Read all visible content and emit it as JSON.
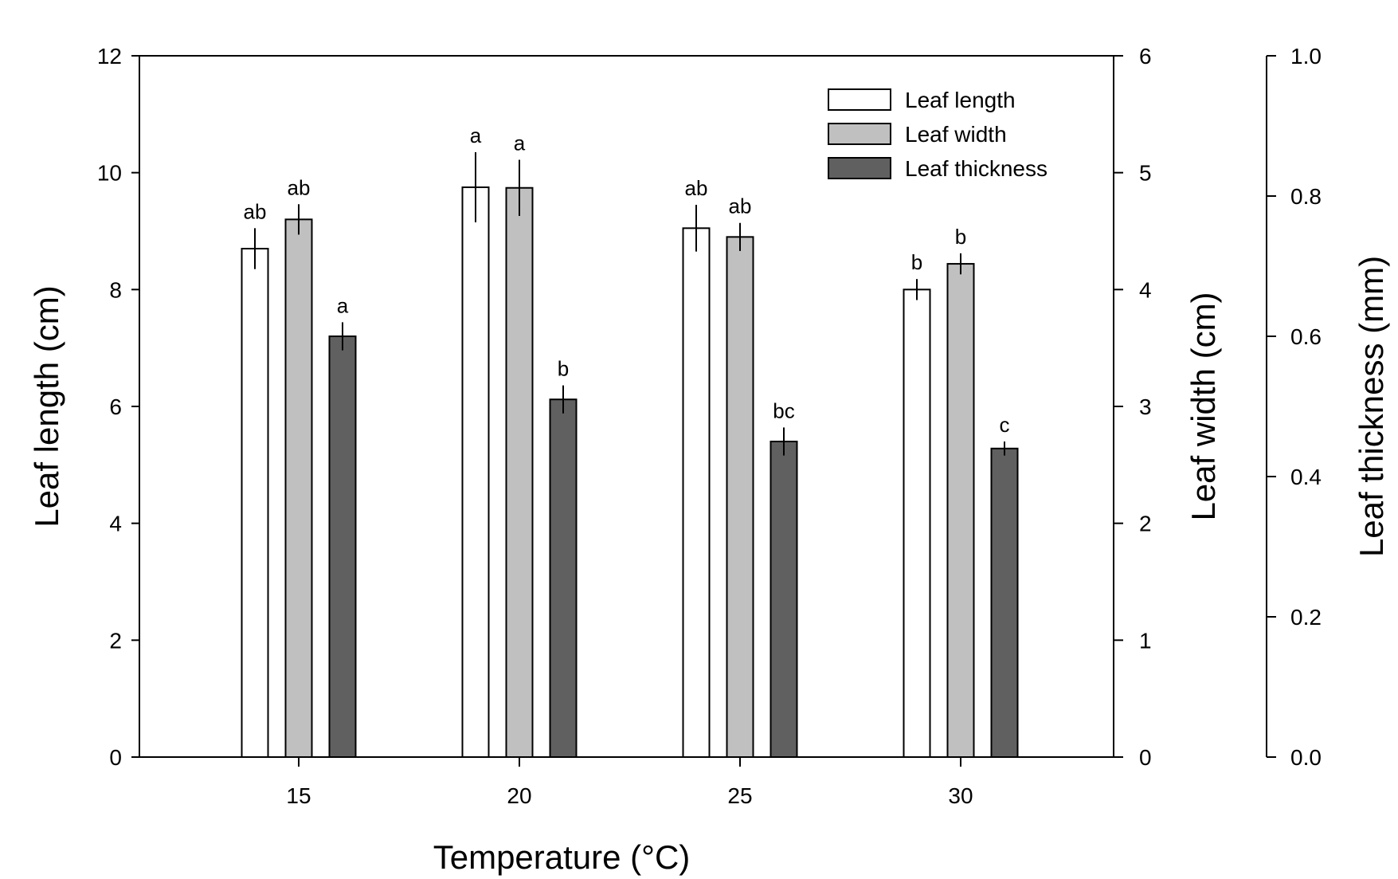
{
  "chart_data": {
    "type": "bar",
    "xlabel": "Temperature (°C)",
    "categories": [
      "15",
      "20",
      "25",
      "30"
    ],
    "axes": {
      "left": {
        "label": "Leaf length (cm)",
        "range": [
          0,
          12
        ],
        "ticks": [
          "0",
          "2",
          "4",
          "6",
          "8",
          "10",
          "12"
        ]
      },
      "right": {
        "label": "Leaf width (cm)",
        "range": [
          0,
          6
        ],
        "ticks": [
          "0",
          "1",
          "2",
          "3",
          "4",
          "5",
          "6"
        ]
      },
      "far_right": {
        "label": "Leaf thickness (mm)",
        "range": [
          0,
          1
        ],
        "ticks": [
          "0.0",
          "0.2",
          "0.4",
          "0.6",
          "0.8",
          "1.0"
        ]
      }
    },
    "legend_position": "top-right",
    "series": [
      {
        "name": "Leaf length",
        "axis": "left",
        "color": "#ffffff",
        "values": [
          8.7,
          9.75,
          9.05,
          8.0
        ],
        "errors": [
          0.35,
          0.6,
          0.4,
          0.18
        ],
        "letters": [
          "ab",
          "a",
          "ab",
          "b"
        ]
      },
      {
        "name": "Leaf width",
        "axis": "right",
        "color": "#c0c0c0",
        "values": [
          4.6,
          4.87,
          4.45,
          4.22
        ],
        "errors": [
          0.13,
          0.24,
          0.12,
          0.09
        ],
        "letters": [
          "ab",
          "a",
          "ab",
          "b"
        ]
      },
      {
        "name": "Leaf thickness",
        "axis": "far_right",
        "color": "#606060",
        "values": [
          0.6,
          0.51,
          0.45,
          0.44
        ],
        "errors": [
          0.02,
          0.02,
          0.02,
          0.01
        ],
        "letters": [
          "a",
          "b",
          "bc",
          "c"
        ]
      }
    ]
  }
}
